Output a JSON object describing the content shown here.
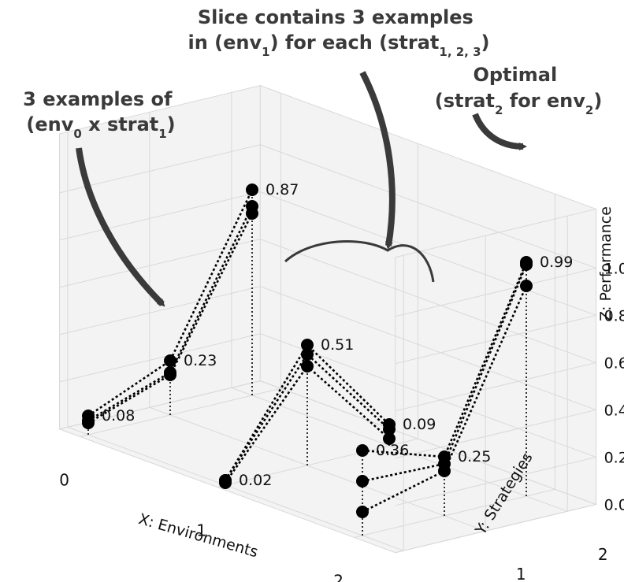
{
  "chart_data": {
    "type": "scatter",
    "projection": "3d",
    "xlabel": "X: Environments",
    "ylabel": "Y: Strategies",
    "zlabel": "Z: Performance",
    "x_ticks": [
      "0",
      "1",
      "2"
    ],
    "y_ticks": [
      "0",
      "1",
      "2"
    ],
    "z_ticks": [
      "0.0",
      "0.2",
      "0.4",
      "0.6",
      "0.8",
      "1.0"
    ],
    "zlim": [
      0,
      1
    ],
    "grid": true,
    "points": [
      {
        "env": 0,
        "strat": 0,
        "z": 0.08
      },
      {
        "env": 0,
        "strat": 0,
        "z": 0.06
      },
      {
        "env": 0,
        "strat": 0,
        "z": 0.05
      },
      {
        "env": 0,
        "strat": 1,
        "z": 0.23
      },
      {
        "env": 0,
        "strat": 1,
        "z": 0.18
      },
      {
        "env": 0,
        "strat": 1,
        "z": 0.17
      },
      {
        "env": 0,
        "strat": 2,
        "z": 0.87
      },
      {
        "env": 0,
        "strat": 2,
        "z": 0.8
      },
      {
        "env": 0,
        "strat": 2,
        "z": 0.77
      },
      {
        "env": 1,
        "strat": 0,
        "z": 0.02
      },
      {
        "env": 1,
        "strat": 0,
        "z": 0.02
      },
      {
        "env": 1,
        "strat": 0,
        "z": 0.01
      },
      {
        "env": 1,
        "strat": 1,
        "z": 0.51
      },
      {
        "env": 1,
        "strat": 1,
        "z": 0.47
      },
      {
        "env": 1,
        "strat": 1,
        "z": 0.42
      },
      {
        "env": 1,
        "strat": 2,
        "z": 0.09
      },
      {
        "env": 1,
        "strat": 2,
        "z": 0.07
      },
      {
        "env": 1,
        "strat": 2,
        "z": 0.03
      },
      {
        "env": 2,
        "strat": 0,
        "z": 0.36
      },
      {
        "env": 2,
        "strat": 0,
        "z": 0.23
      },
      {
        "env": 2,
        "strat": 0,
        "z": 0.1
      },
      {
        "env": 2,
        "strat": 1,
        "z": 0.25
      },
      {
        "env": 2,
        "strat": 1,
        "z": 0.22
      },
      {
        "env": 2,
        "strat": 1,
        "z": 0.19
      },
      {
        "env": 2,
        "strat": 2,
        "z": 0.99
      },
      {
        "env": 2,
        "strat": 2,
        "z": 0.98
      },
      {
        "env": 2,
        "strat": 2,
        "z": 0.89
      }
    ],
    "value_labels": [
      {
        "env": 0,
        "strat": 0,
        "z": 0.08,
        "text": "0.08"
      },
      {
        "env": 0,
        "strat": 1,
        "z": 0.23,
        "text": "0.23"
      },
      {
        "env": 0,
        "strat": 2,
        "z": 0.87,
        "text": "0.87"
      },
      {
        "env": 1,
        "strat": 0,
        "z": 0.02,
        "text": "0.02"
      },
      {
        "env": 1,
        "strat": 1,
        "z": 0.51,
        "text": "0.51"
      },
      {
        "env": 1,
        "strat": 2,
        "z": 0.09,
        "text": "0.09"
      },
      {
        "env": 2,
        "strat": 0,
        "z": 0.36,
        "text": "0.36"
      },
      {
        "env": 2,
        "strat": 1,
        "z": 0.25,
        "text": "0.25"
      },
      {
        "env": 2,
        "strat": 2,
        "z": 0.99,
        "text": "0.99"
      }
    ],
    "annotations": [
      {
        "lines": [
          {
            "text": "Slice contains 3 examples"
          },
          {
            "text": "in (env",
            "sub": "1",
            "tail": ") for each (strat",
            "sub2": "1, 2, 3",
            "tail2": ")"
          }
        ]
      },
      {
        "lines": [
          {
            "text": "3 examples of"
          },
          {
            "text": "(env",
            "sub": "0",
            "tail": " x strat",
            "sub2": "1",
            "tail2": ")"
          }
        ]
      },
      {
        "lines": [
          {
            "text": "Optimal"
          },
          {
            "text": "(strat",
            "sub": "2",
            "tail": " for env",
            "sub2": "2",
            "tail2": ")"
          }
        ]
      }
    ],
    "colors": {
      "points": "#000000",
      "grid": "#d9d9d9",
      "pane": "#f3f3f3",
      "annotation": "#3a3a3a"
    }
  }
}
